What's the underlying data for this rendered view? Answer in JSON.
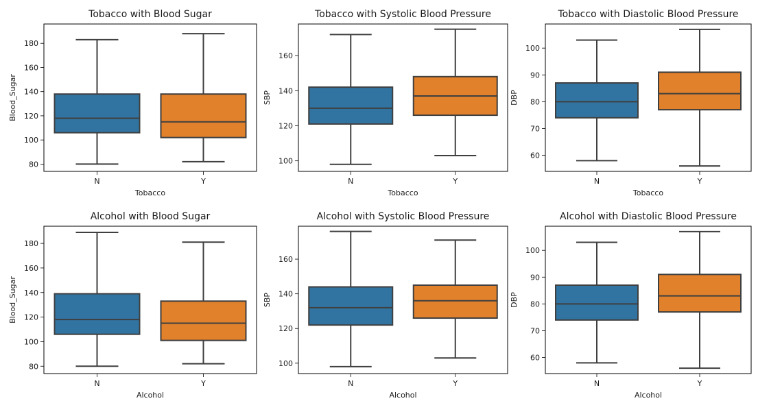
{
  "chart_data": [
    {
      "type": "box",
      "title": "Tobacco with Blood Sugar",
      "xlabel": "Tobacco",
      "ylabel": "Blood_Sugar",
      "categories": [
        "N",
        "Y"
      ],
      "ylim": [
        74,
        196
      ],
      "yticks": [
        "80",
        "100",
        "120",
        "140",
        "160",
        "180"
      ],
      "boxes": [
        {
          "category": "N",
          "min": 80,
          "q1": 106,
          "median": 118,
          "q3": 138,
          "max": 183,
          "color": "#3274a1"
        },
        {
          "category": "Y",
          "min": 82,
          "q1": 102,
          "median": 115,
          "q3": 138,
          "max": 188,
          "color": "#e1812c"
        }
      ]
    },
    {
      "type": "box",
      "title": "Tobacco with Systolic Blood Pressure",
      "xlabel": "Tobacco",
      "ylabel": "SBP",
      "categories": [
        "N",
        "Y"
      ],
      "ylim": [
        94,
        178
      ],
      "yticks": [
        "100",
        "120",
        "140",
        "160"
      ],
      "boxes": [
        {
          "category": "N",
          "min": 98,
          "q1": 121,
          "median": 130,
          "q3": 142,
          "max": 172,
          "color": "#3274a1"
        },
        {
          "category": "Y",
          "min": 103,
          "q1": 126,
          "median": 137,
          "q3": 148,
          "max": 175,
          "color": "#e1812c"
        }
      ]
    },
    {
      "type": "box",
      "title": "Tobacco with Diastolic Blood Pressure",
      "xlabel": "Tobacco",
      "ylabel": "DBP",
      "categories": [
        "N",
        "Y"
      ],
      "ylim": [
        54,
        109
      ],
      "yticks": [
        "60",
        "70",
        "80",
        "90",
        "100"
      ],
      "boxes": [
        {
          "category": "N",
          "min": 58,
          "q1": 74,
          "median": 80,
          "q3": 87,
          "max": 103,
          "color": "#3274a1"
        },
        {
          "category": "Y",
          "min": 56,
          "q1": 77,
          "median": 83,
          "q3": 91,
          "max": 107,
          "color": "#e1812c"
        }
      ]
    },
    {
      "type": "box",
      "title": "Alcohol with Blood Sugar",
      "xlabel": "Alcohol",
      "ylabel": "Blood_Sugar",
      "categories": [
        "N",
        "Y"
      ],
      "ylim": [
        74,
        194
      ],
      "yticks": [
        "80",
        "100",
        "120",
        "140",
        "160",
        "180"
      ],
      "boxes": [
        {
          "category": "N",
          "min": 80,
          "q1": 106,
          "median": 118,
          "q3": 139,
          "max": 189,
          "color": "#3274a1"
        },
        {
          "category": "Y",
          "min": 82,
          "q1": 101,
          "median": 115,
          "q3": 133,
          "max": 181,
          "color": "#e1812c"
        }
      ]
    },
    {
      "type": "box",
      "title": "Alcohol with Systolic Blood Pressure",
      "xlabel": "Alcohol",
      "ylabel": "SBP",
      "categories": [
        "N",
        "Y"
      ],
      "ylim": [
        94,
        179
      ],
      "yticks": [
        "100",
        "120",
        "140",
        "160"
      ],
      "boxes": [
        {
          "category": "N",
          "min": 98,
          "q1": 122,
          "median": 132,
          "q3": 144,
          "max": 176,
          "color": "#3274a1"
        },
        {
          "category": "Y",
          "min": 103,
          "q1": 126,
          "median": 136,
          "q3": 145,
          "max": 171,
          "color": "#e1812c"
        }
      ]
    },
    {
      "type": "box",
      "title": "Alcohol with Diastolic Blood Pressure",
      "xlabel": "Alcohol",
      "ylabel": "DBP",
      "categories": [
        "N",
        "Y"
      ],
      "ylim": [
        54,
        109
      ],
      "yticks": [
        "60",
        "70",
        "80",
        "90",
        "100"
      ],
      "boxes": [
        {
          "category": "N",
          "min": 58,
          "q1": 74,
          "median": 80,
          "q3": 87,
          "max": 103,
          "color": "#3274a1"
        },
        {
          "category": "Y",
          "min": 56,
          "q1": 77,
          "median": 83,
          "q3": 91,
          "max": 107,
          "color": "#e1812c"
        }
      ]
    }
  ]
}
